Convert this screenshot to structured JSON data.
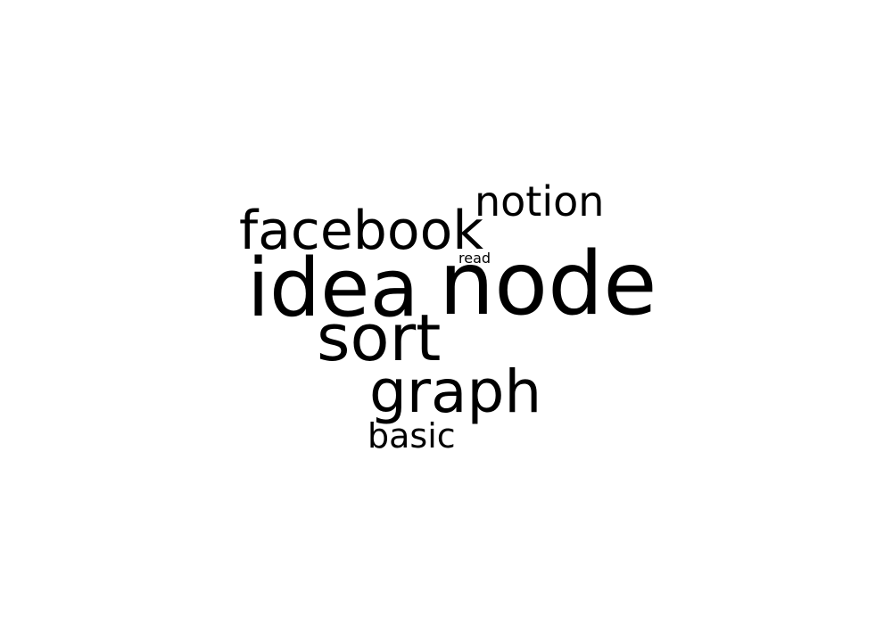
{
  "word_cloud": {
    "words": [
      {
        "text": "notion"
      },
      {
        "text": "facebook"
      },
      {
        "text": "read"
      },
      {
        "text": "idea"
      },
      {
        "text": "node"
      },
      {
        "text": "sort"
      },
      {
        "text": "graph"
      },
      {
        "text": "basic"
      }
    ],
    "text_color": "#000000",
    "background_color": "#ffffff"
  }
}
